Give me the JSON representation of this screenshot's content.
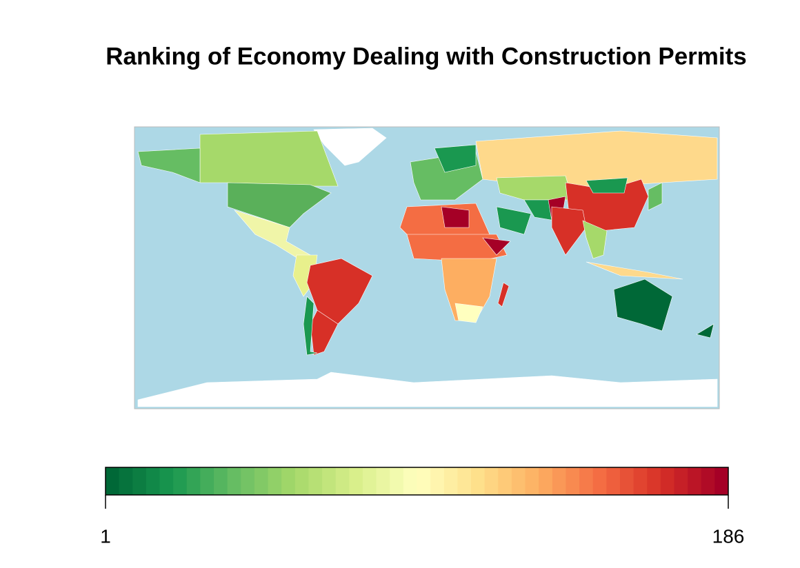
{
  "chart_data": {
    "type": "choropleth",
    "title": "Ranking of Economy  Dealing with Construction Permits",
    "colorbar_lim": [
      1,
      186
    ],
    "colorbar_ticks": [
      1,
      186
    ],
    "colors": [
      "#006837",
      "#1a9850",
      "#66bd63",
      "#a6d96a",
      "#d9ef8b",
      "#ffffbf",
      "#fee08b",
      "#fdae61",
      "#f46d43",
      "#d73027",
      "#a50026"
    ]
  }
}
